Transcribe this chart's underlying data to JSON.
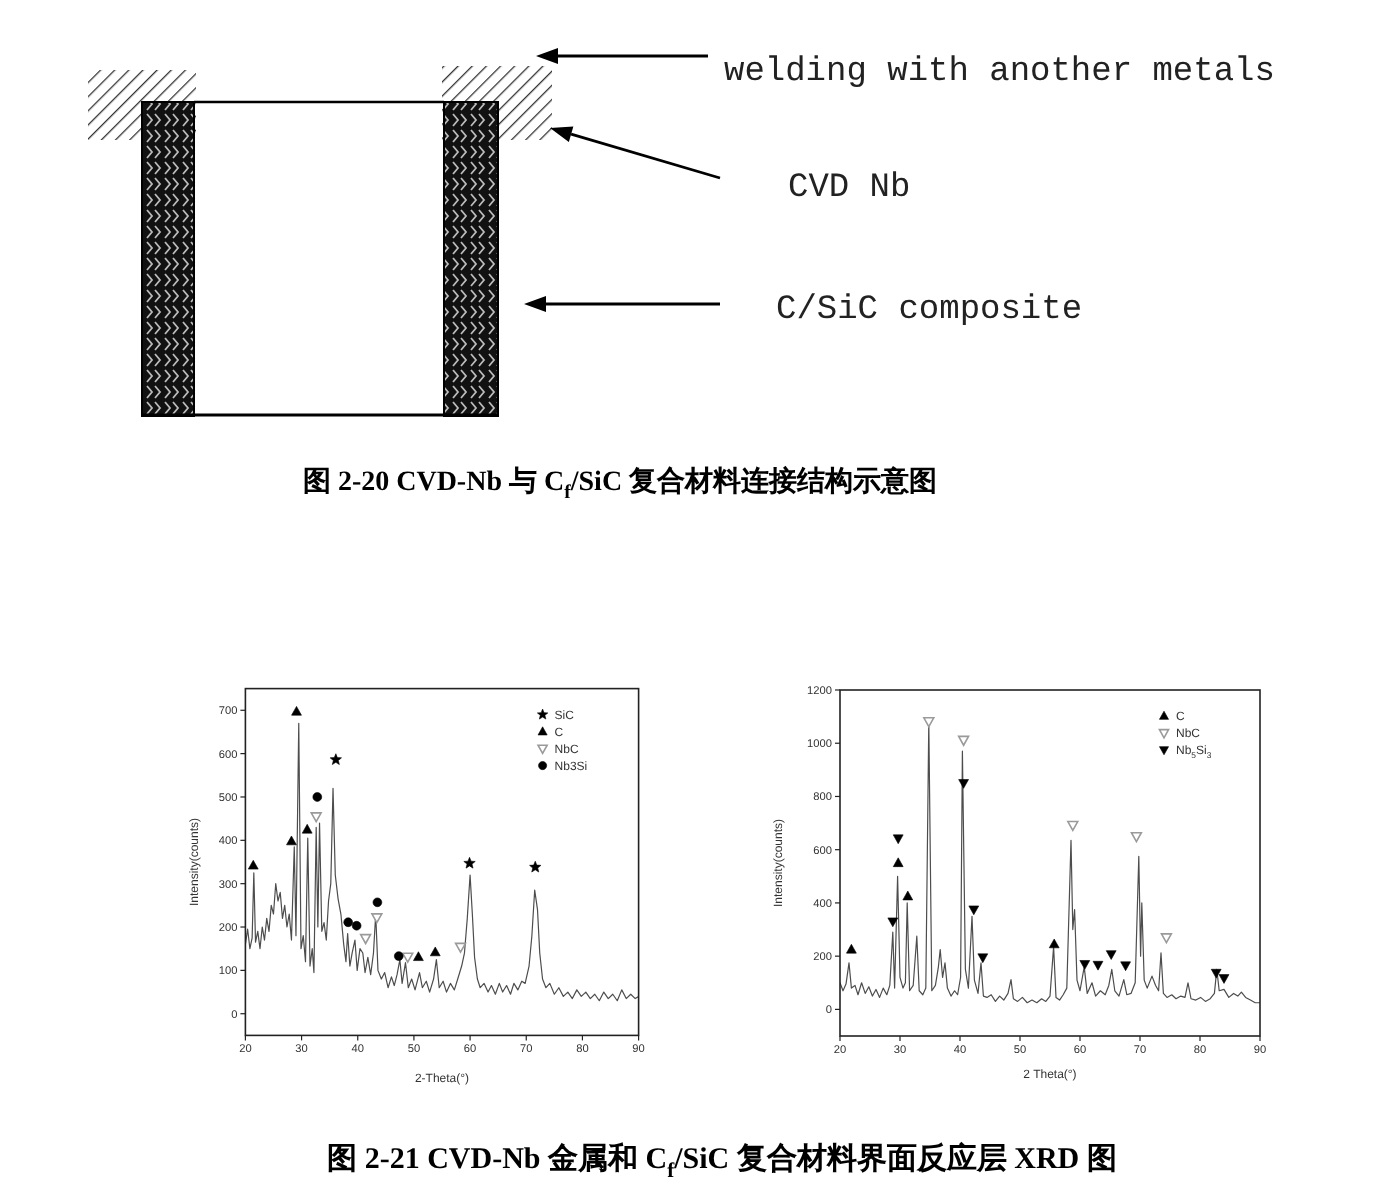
{
  "chart_data": [
    {
      "type": "other",
      "title": "图 2-20 CVD-Nb 与 C$_{f}$/SiC 复合材料连接结构示意图",
      "annotations": [
        "welding with another metals",
        "CVD Nb",
        "C/SiC composite"
      ]
    },
    {
      "type": "line",
      "xlabel": "2-Theta(°)",
      "ylabel": "Intensity(counts)",
      "xlim": [
        20,
        90
      ],
      "xticks": [
        20,
        30,
        40,
        50,
        60,
        70,
        80,
        90
      ],
      "ylim": [
        -50,
        750
      ],
      "yticks": [
        0,
        100,
        200,
        300,
        400,
        500,
        600,
        700
      ],
      "legend": "top right",
      "series": [
        {
          "type": "line",
          "color": "#4d4d4d",
          "x": [
            20.0,
            20.4,
            20.8,
            21.2,
            21.5,
            21.8,
            22.2,
            22.6,
            23.0,
            23.4,
            23.8,
            24.2,
            24.6,
            25.0,
            25.4,
            25.8,
            26.2,
            26.6,
            27.0,
            27.4,
            27.8,
            28.2,
            28.7,
            29.0,
            29.5,
            29.9,
            30.3,
            30.7,
            31.1,
            31.5,
            31.9,
            32.2,
            32.6,
            32.9,
            33.2,
            33.6,
            34.0,
            34.4,
            34.8,
            35.2,
            35.6,
            36.0,
            36.5,
            37.0,
            37.5,
            37.9,
            38.2,
            38.6,
            39.0,
            39.5,
            39.9,
            40.4,
            40.9,
            41.3,
            41.8,
            42.3,
            42.8,
            43.2,
            43.6,
            44.2,
            44.8,
            45.4,
            46.0,
            46.5,
            47.0,
            47.5,
            47.9,
            48.5,
            49.0,
            49.6,
            50.2,
            51.0,
            51.5,
            52.2,
            52.8,
            53.5,
            54.0,
            54.5,
            55.2,
            55.8,
            56.5,
            57.2,
            57.8,
            58.5,
            59.0,
            59.5,
            60.0,
            60.4,
            60.8,
            61.3,
            61.8,
            62.5,
            63.2,
            63.8,
            64.5,
            65.2,
            65.8,
            66.5,
            67.2,
            67.8,
            68.5,
            69.2,
            69.8,
            70.5,
            71.0,
            71.5,
            72.0,
            72.4,
            72.9,
            73.5,
            74.2,
            75.0,
            75.8,
            76.6,
            77.4,
            78.2,
            79.0,
            79.8,
            80.6,
            81.4,
            82.2,
            83.0,
            83.8,
            84.6,
            85.4,
            86.2,
            87.0,
            87.8,
            88.6,
            89.4,
            90.0
          ],
          "values": [
            160,
            195,
            150,
            175,
            325,
            165,
            190,
            150,
            200,
            170,
            220,
            190,
            250,
            230,
            300,
            260,
            280,
            220,
            250,
            200,
            230,
            170,
            385,
            180,
            670,
            150,
            180,
            120,
            405,
            110,
            150,
            95,
            430,
            200,
            440,
            190,
            210,
            170,
            260,
            300,
            520,
            320,
            265,
            230,
            160,
            120,
            185,
            110,
            140,
            170,
            100,
            150,
            140,
            95,
            130,
            90,
            140,
            230,
            100,
            80,
            95,
            60,
            85,
            65,
            90,
            125,
            70,
            118,
            60,
            80,
            55,
            95,
            60,
            75,
            50,
            80,
            125,
            60,
            75,
            50,
            70,
            55,
            80,
            110,
            140,
            220,
            320,
            230,
            130,
            80,
            60,
            70,
            50,
            65,
            45,
            70,
            50,
            65,
            45,
            70,
            55,
            75,
            70,
            110,
            180,
            285,
            240,
            140,
            80,
            60,
            70,
            45,
            60,
            40,
            50,
            35,
            55,
            40,
            50,
            35,
            45,
            30,
            50,
            35,
            45,
            30,
            55,
            35,
            45,
            35,
            40
          ]
        },
        {
          "type": "scatter",
          "name": "SiC",
          "color": "#000000",
          "marker": "star",
          "x": [
            36.1,
            59.9,
            71.6
          ],
          "values": [
            586,
            347,
            338
          ]
        },
        {
          "type": "scatter",
          "name": "C",
          "color": "#000000",
          "marker": "triangle",
          "x": [
            21.4,
            28.2,
            29.1,
            31.0,
            50.8,
            53.8
          ],
          "values": [
            342,
            398,
            697,
            425,
            131,
            142
          ]
        },
        {
          "type": "scatter",
          "name": "NbC",
          "color": "#9a9a9a",
          "marker": "triangle-down-open",
          "x": [
            32.6,
            41.4,
            43.4,
            48.9,
            58.3
          ],
          "values": [
            455,
            174,
            222,
            131,
            154
          ]
        },
        {
          "type": "scatter",
          "name": "Nb3Si",
          "color": "#000000",
          "marker": "circle",
          "x": [
            32.8,
            38.3,
            39.8,
            43.5,
            47.3
          ],
          "values": [
            500,
            211,
            203,
            257,
            133
          ]
        }
      ]
    },
    {
      "type": "line",
      "xlabel": "2 Theta(°)",
      "ylabel": "Intensity(counts)",
      "xlim": [
        20,
        90
      ],
      "xticks": [
        20,
        30,
        40,
        50,
        60,
        70,
        80,
        90
      ],
      "ylim": [
        -100,
        1200
      ],
      "yticks": [
        0,
        200,
        400,
        600,
        800,
        1000,
        1200
      ],
      "legend": "top right",
      "series": [
        {
          "type": "line",
          "color": "#4d4d4d",
          "x": [
            20.0,
            20.5,
            21.0,
            21.5,
            21.9,
            22.5,
            23.0,
            23.6,
            24.2,
            24.8,
            25.4,
            26.0,
            26.6,
            27.2,
            27.8,
            28.3,
            28.8,
            29.1,
            29.6,
            30.0,
            30.5,
            30.9,
            31.2,
            31.6,
            32.2,
            32.8,
            33.2,
            33.8,
            34.3,
            34.8,
            35.3,
            35.9,
            36.4,
            36.7,
            37.1,
            37.5,
            37.9,
            38.5,
            39.1,
            39.6,
            40.1,
            40.4,
            40.9,
            41.4,
            42.0,
            42.4,
            43.0,
            43.5,
            43.9,
            44.5,
            45.2,
            45.9,
            46.6,
            47.3,
            48.0,
            48.5,
            48.9,
            49.6,
            50.4,
            51.2,
            52.0,
            52.8,
            53.6,
            54.3,
            55.0,
            55.6,
            56.0,
            56.6,
            57.2,
            57.8,
            58.5,
            58.8,
            59.1,
            59.5,
            60.0,
            60.7,
            61.2,
            62.0,
            62.6,
            63.4,
            64.2,
            64.8,
            65.3,
            65.8,
            66.5,
            67.3,
            67.8,
            68.5,
            69.2,
            69.8,
            70.1,
            70.3,
            70.7,
            71.2,
            72.0,
            72.6,
            73.1,
            73.5,
            73.9,
            74.5,
            75.3,
            76.0,
            76.8,
            77.5,
            78.0,
            78.5,
            79.3,
            80.1,
            80.9,
            81.7,
            82.4,
            82.8,
            83.2,
            84.0,
            84.8,
            85.6,
            86.3,
            86.9,
            87.6,
            88.4,
            89.2,
            90.0
          ],
          "values": [
            100,
            70,
            95,
            175,
            80,
            90,
            55,
            100,
            60,
            85,
            50,
            75,
            45,
            80,
            55,
            90,
            290,
            80,
            500,
            120,
            80,
            100,
            400,
            70,
            90,
            275,
            70,
            55,
            80,
            1080,
            70,
            90,
            160,
            225,
            120,
            175,
            80,
            50,
            70,
            55,
            120,
            970,
            150,
            80,
            350,
            110,
            60,
            175,
            50,
            45,
            55,
            30,
            50,
            35,
            60,
            112,
            40,
            30,
            45,
            25,
            35,
            25,
            40,
            30,
            50,
            235,
            45,
            35,
            55,
            80,
            635,
            300,
            375,
            110,
            70,
            160,
            60,
            100,
            50,
            70,
            55,
            90,
            150,
            70,
            50,
            112,
            55,
            60,
            100,
            575,
            200,
            400,
            110,
            80,
            125,
            90,
            70,
            212,
            60,
            45,
            55,
            40,
            50,
            45,
            100,
            40,
            35,
            45,
            30,
            40,
            60,
            150,
            70,
            75,
            45,
            60,
            50,
            65,
            45,
            35,
            25,
            25
          ]
        },
        {
          "type": "scatter",
          "name": "C",
          "color": "#000000",
          "marker": "triangle",
          "x": [
            21.9,
            29.7,
            31.3,
            55.7
          ],
          "values": [
            225,
            550,
            425,
            245
          ]
        },
        {
          "type": "scatter",
          "name": "NbC",
          "color": "#9a9a9a",
          "marker": "triangle-down-open",
          "x": [
            34.8,
            40.6,
            58.8,
            69.4,
            74.4
          ],
          "values": [
            1082,
            1012,
            692,
            650,
            270
          ]
        },
        {
          "type": "scatter",
          "name": "Nb$_{5}$Si$_{3}$",
          "color": "#000000",
          "marker": "triangle-down",
          "x": [
            28.8,
            29.7,
            40.6,
            42.3,
            43.8,
            60.8,
            63.0,
            65.2,
            67.6,
            82.7,
            84.0
          ],
          "values": [
            330,
            642,
            850,
            375,
            195,
            170,
            167,
            207,
            165,
            137,
            117
          ]
        }
      ]
    },
    {
      "type": "other",
      "title": "图 2-21 CVD-Nb 金属和 C$_{f}$/SiC 复合材料界面反应层 XRD 图"
    }
  ]
}
